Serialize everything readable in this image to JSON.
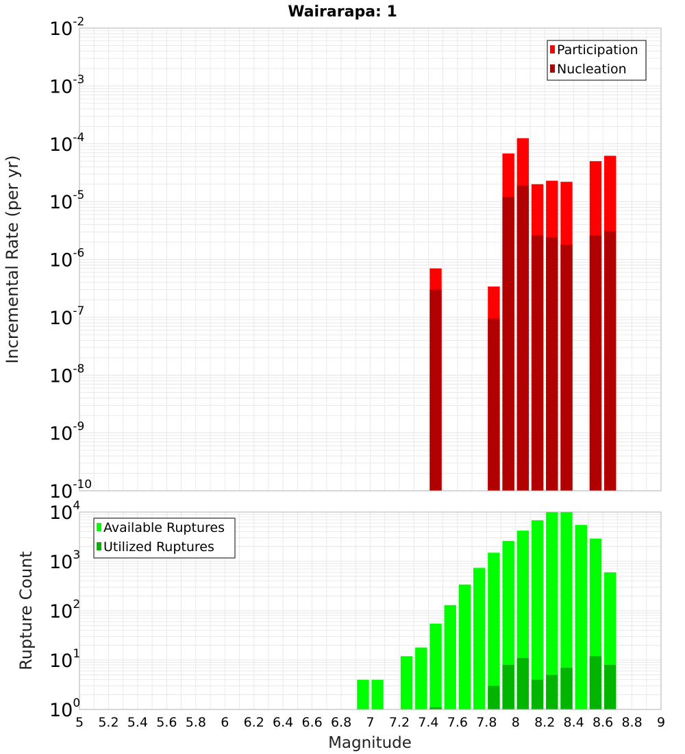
{
  "title": "Wairarapa: 1",
  "xlabel": "Magnitude",
  "x_ticks": [
    "5",
    "5.2",
    "5.4",
    "5.6",
    "5.8",
    "6",
    "6.2",
    "6.4",
    "6.6",
    "6.8",
    "7",
    "7.2",
    "7.4",
    "7.6",
    "7.8",
    "8",
    "8.2",
    "8.4",
    "8.6",
    "8.8",
    "9"
  ],
  "colors": {
    "participation": "#ff0000",
    "nucleation": "#b00000",
    "available": "#00ff00",
    "utilized": "#00b400",
    "grid": "#e4e4e4",
    "frame": "#b0b0b0"
  },
  "chart_data": [
    {
      "type": "bar",
      "title": "Wairarapa: 1",
      "xlabel": "Magnitude",
      "ylabel": "Incremental Rate (per yr)",
      "yscale": "log",
      "xlim": [
        5,
        9
      ],
      "ylim": [
        1e-10,
        0.01
      ],
      "y_tick_exponents": [
        "-10",
        "-9",
        "-8",
        "-7",
        "-6",
        "-5",
        "-4",
        "-3",
        "-2"
      ],
      "legend": {
        "position": "top-right",
        "entries": [
          "Participation",
          "Nucleation"
        ]
      },
      "x": [
        7.45,
        7.85,
        7.95,
        8.05,
        8.15,
        8.25,
        8.35,
        8.55,
        8.65
      ],
      "series": [
        {
          "name": "Participation",
          "values": [
            7e-07,
            3.4e-07,
            6.8e-05,
            0.000125,
            2e-05,
            2.3e-05,
            2.2e-05,
            5e-05,
            6.2e-05
          ]
        },
        {
          "name": "Nucleation",
          "values": [
            3e-07,
            9.5e-08,
            1.2e-05,
            1.9e-05,
            2.6e-06,
            2.4e-06,
            1.8e-06,
            2.6e-06,
            3.1e-06
          ]
        }
      ]
    },
    {
      "type": "bar",
      "xlabel": "Magnitude",
      "ylabel": "Rupture Count",
      "yscale": "log",
      "xlim": [
        5,
        9
      ],
      "ylim": [
        1,
        10000
      ],
      "y_tick_exponents": [
        "0",
        "1",
        "2",
        "3",
        "4"
      ],
      "legend": {
        "position": "top-left",
        "entries": [
          "Available Ruptures",
          "Utilized Ruptures"
        ]
      },
      "x": [
        6.95,
        7.05,
        7.25,
        7.35,
        7.45,
        7.55,
        7.65,
        7.75,
        7.85,
        7.95,
        8.05,
        8.15,
        8.25,
        8.35,
        8.45,
        8.55,
        8.65
      ],
      "series": [
        {
          "name": "Available Ruptures",
          "values": [
            4,
            4,
            12,
            18,
            55,
            130,
            340,
            740,
            1500,
            2600,
            4200,
            6800,
            10000,
            10000,
            5500,
            2900,
            600
          ]
        },
        {
          "name": "Utilized Ruptures",
          "values": [
            null,
            null,
            null,
            null,
            1.1,
            null,
            null,
            null,
            3,
            8,
            11,
            4,
            5,
            7,
            null,
            12,
            8
          ]
        }
      ]
    }
  ]
}
